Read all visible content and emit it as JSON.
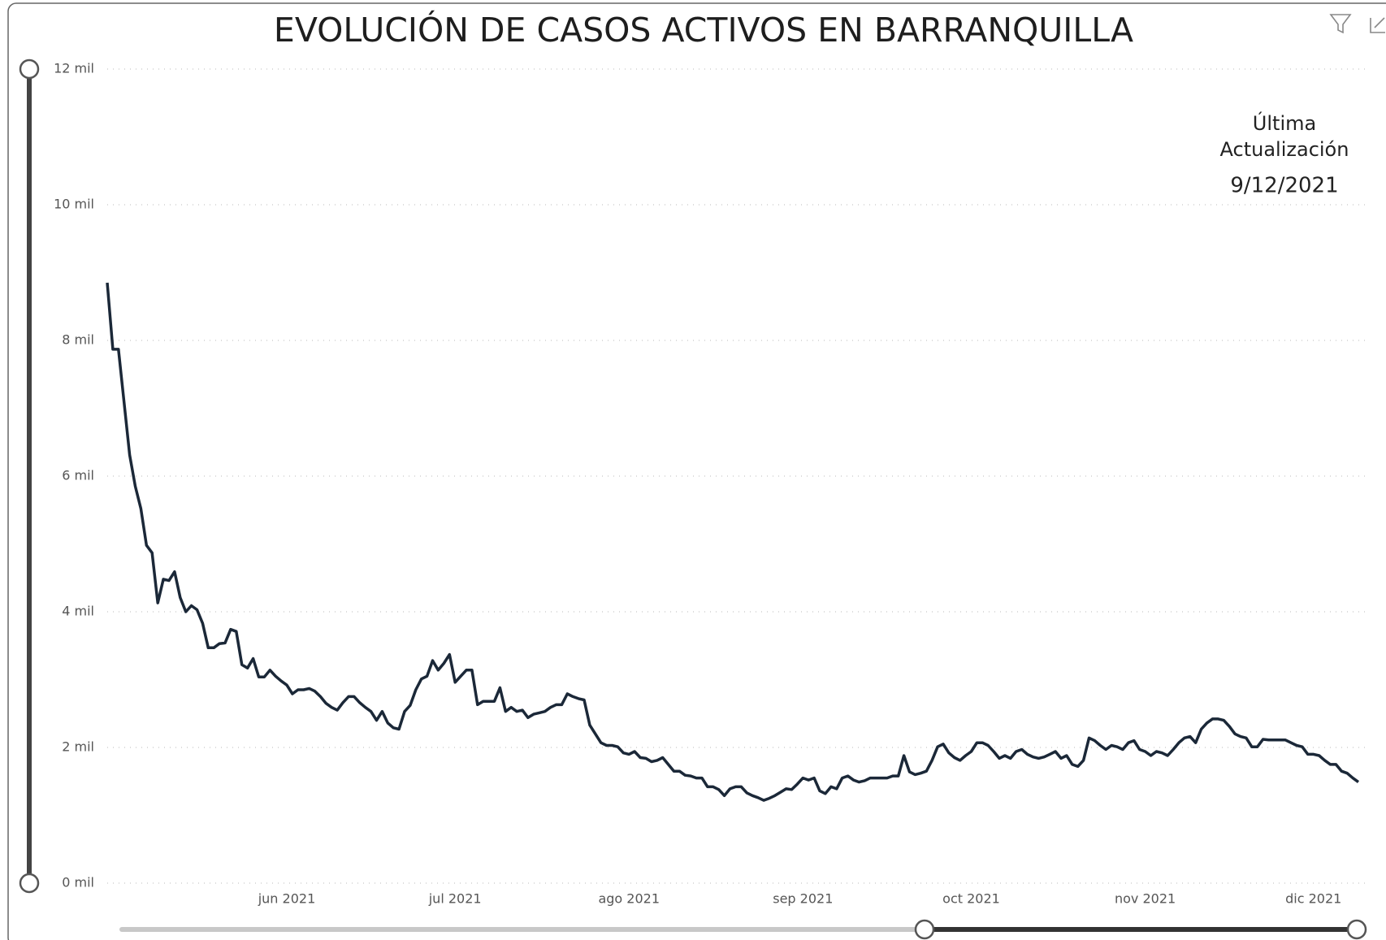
{
  "chart_data": {
    "type": "line",
    "title": "EVOLUCIÓN DE CASOS ACTIVOS EN BARRANQUILLA",
    "annotation": [
      "Última",
      "Actualización",
      "9/12/2021"
    ],
    "color": "#1b2838",
    "grid": true,
    "xlim": [
      0,
      223
    ],
    "xticks": [
      {
        "value": 32,
        "label": "jun 2021"
      },
      {
        "value": 62,
        "label": "jul 2021"
      },
      {
        "value": 93,
        "label": "ago 2021"
      },
      {
        "value": 124,
        "label": "sep 2021"
      },
      {
        "value": 154,
        "label": "oct 2021"
      },
      {
        "value": 185,
        "label": "nov 2021"
      },
      {
        "value": 215,
        "label": "dic 2021"
      }
    ],
    "ylim": [
      0,
      12000
    ],
    "yticks": [
      {
        "value": 0,
        "label": "0 mil"
      },
      {
        "value": 2000,
        "label": "2 mil"
      },
      {
        "value": 4000,
        "label": "4 mil"
      },
      {
        "value": 6000,
        "label": "6 mil"
      },
      {
        "value": 8000,
        "label": "8 mil"
      },
      {
        "value": 10000,
        "label": "10 mil"
      },
      {
        "value": 12000,
        "label": "12 mil"
      }
    ],
    "values": [
      8850,
      7870,
      7870,
      7090,
      6310,
      5850,
      5520,
      4980,
      4870,
      4130,
      4480,
      4460,
      4590,
      4210,
      4000,
      4090,
      4030,
      3830,
      3470,
      3470,
      3530,
      3540,
      3740,
      3710,
      3220,
      3170,
      3310,
      3040,
      3040,
      3140,
      3050,
      2980,
      2920,
      2790,
      2850,
      2850,
      2870,
      2830,
      2750,
      2650,
      2590,
      2550,
      2660,
      2750,
      2750,
      2660,
      2590,
      2530,
      2400,
      2530,
      2360,
      2290,
      2270,
      2530,
      2620,
      2850,
      3010,
      3050,
      3280,
      3140,
      3240,
      3370,
      2960,
      3050,
      3140,
      3140,
      2630,
      2680,
      2680,
      2680,
      2880,
      2530,
      2590,
      2530,
      2550,
      2440,
      2490,
      2510,
      2530,
      2590,
      2630,
      2630,
      2790,
      2750,
      2720,
      2700,
      2330,
      2200,
      2070,
      2030,
      2030,
      2010,
      1920,
      1900,
      1940,
      1850,
      1840,
      1790,
      1810,
      1850,
      1750,
      1650,
      1650,
      1590,
      1580,
      1550,
      1550,
      1420,
      1420,
      1380,
      1290,
      1390,
      1420,
      1420,
      1330,
      1290,
      1260,
      1220,
      1250,
      1290,
      1340,
      1390,
      1380,
      1460,
      1550,
      1520,
      1550,
      1360,
      1320,
      1420,
      1390,
      1550,
      1580,
      1520,
      1490,
      1510,
      1550,
      1550,
      1550,
      1550,
      1580,
      1580,
      1880,
      1640,
      1600,
      1620,
      1650,
      1810,
      2010,
      2050,
      1920,
      1850,
      1810,
      1880,
      1940,
      2070,
      2070,
      2030,
      1940,
      1840,
      1880,
      1840,
      1940,
      1970,
      1900,
      1860,
      1840,
      1860,
      1900,
      1940,
      1840,
      1880,
      1750,
      1720,
      1810,
      2140,
      2100,
      2030,
      1970,
      2030,
      2010,
      1970,
      2070,
      2100,
      1970,
      1940,
      1880,
      1940,
      1920,
      1880,
      1970,
      2070,
      2140,
      2160,
      2070,
      2270,
      2360,
      2420,
      2420,
      2400,
      2310,
      2200,
      2160,
      2140,
      2010,
      2010,
      2120,
      2110,
      2110,
      2110,
      2110,
      2070,
      2030,
      2010,
      1900,
      1900,
      1880,
      1810,
      1750,
      1750,
      1650,
      1620,
      1550,
      1490
    ]
  }
}
